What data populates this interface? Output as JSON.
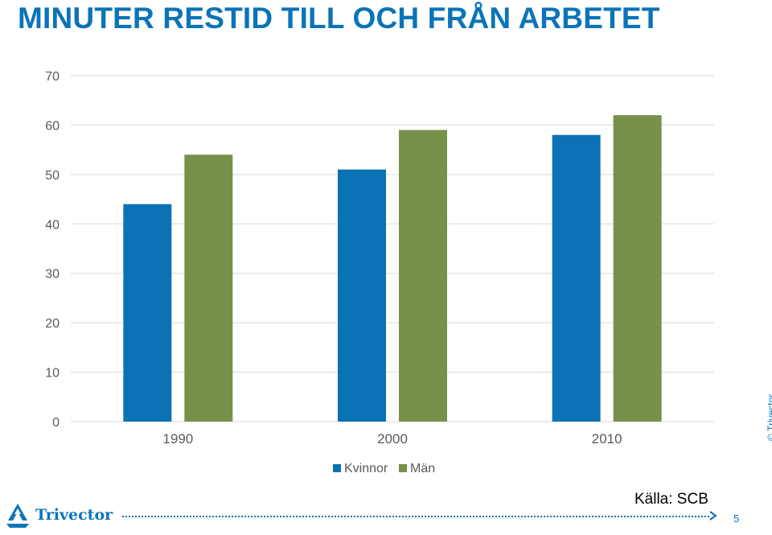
{
  "slide": {
    "title": "MINUTER RESTID TILL OCH FRÅN ARBETET",
    "source": "Källa: SCB",
    "copyright": "© Trivector",
    "logo_text": "Trivector",
    "page_number": "5"
  },
  "colors": {
    "accent": "#0b74b8",
    "kvinnor": "#0a72b5",
    "man": "#77904a",
    "grid": "#d9d9d9",
    "tick": "#595959"
  },
  "chart_data": {
    "type": "bar",
    "title": "MINUTER RESTID TILL OCH FRÅN ARBETET",
    "categories": [
      "1990",
      "2000",
      "2010"
    ],
    "series": [
      {
        "name": "Kvinnor",
        "values": [
          44,
          51,
          58
        ]
      },
      {
        "name": "Män",
        "values": [
          54,
          59,
          62
        ]
      }
    ],
    "ylim": [
      0,
      70
    ],
    "yticks": [
      0,
      10,
      20,
      30,
      40,
      50,
      60,
      70
    ],
    "xlabel": "",
    "ylabel": "",
    "grid": true,
    "legend": "bottom"
  }
}
